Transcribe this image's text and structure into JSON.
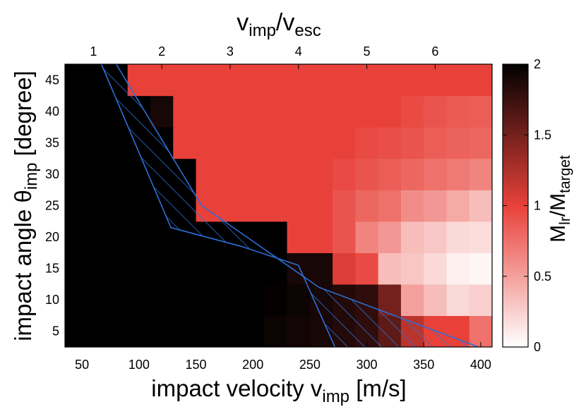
{
  "chart_data": {
    "type": "heatmap",
    "xlabel_main": "impact velocity v",
    "xlabel_sub": "imp",
    "xlabel_tail": " [m/s]",
    "ylabel_main": "impact angle θ",
    "ylabel_sub": "imp",
    "ylabel_tail": " [degree]",
    "top_label_v1": "v",
    "top_label_sub1": "imp",
    "top_label_sep": "/v",
    "top_label_sub2": "esc",
    "colorbar_label_m1": "M",
    "colorbar_label_sub1": "lr",
    "colorbar_label_sep": "/M",
    "colorbar_label_sub2": "target",
    "x_ticks": [
      "50",
      "100",
      "150",
      "200",
      "250",
      "300",
      "350",
      "400"
    ],
    "y_ticks": [
      "5",
      "10",
      "15",
      "20",
      "25",
      "30",
      "35",
      "40",
      "45"
    ],
    "top_ticks": [
      "1",
      "2",
      "3",
      "4",
      "5",
      "6"
    ],
    "top_tick_values": [
      1,
      2,
      3,
      4,
      5,
      6
    ],
    "colorbar_ticks": [
      "0",
      "0.5",
      "1",
      "1.5",
      "2"
    ],
    "colorbar_tick_values": [
      0,
      0.5,
      1,
      1.5,
      2
    ],
    "xlim": [
      35,
      410
    ],
    "ylim": [
      2.5,
      47.5
    ],
    "clim": [
      0,
      2
    ],
    "v_esc": 60,
    "x_centers": [
      40,
      60,
      80,
      100,
      120,
      140,
      160,
      180,
      200,
      220,
      240,
      260,
      280,
      300,
      320,
      340,
      360,
      380,
      400
    ],
    "y_centers": [
      5,
      10,
      15,
      20,
      25,
      30,
      35,
      40,
      45
    ],
    "colormap": [
      "#ffffff",
      "#e8413a",
      "#000000"
    ],
    "grid": [
      [
        2,
        2,
        2,
        2,
        2,
        2,
        2,
        2,
        2,
        1.95,
        1.92,
        1.9,
        1.85,
        1.8,
        1.6,
        1.2,
        1.0,
        1.0,
        0.75
      ],
      [
        2,
        2,
        2,
        2,
        2,
        2,
        2,
        2,
        2,
        1.98,
        1.95,
        1.9,
        1.85,
        1.8,
        1.5,
        0.5,
        0.35,
        0.2,
        0.25
      ],
      [
        2,
        2,
        2,
        2,
        2,
        2,
        2,
        2,
        2,
        2,
        1.9,
        1.9,
        1.05,
        0.95,
        0.35,
        0.3,
        0.2,
        0.08,
        0.05
      ],
      [
        2,
        2,
        2,
        2,
        2,
        2,
        2,
        2,
        2,
        2,
        1.0,
        1.0,
        0.9,
        0.65,
        0.55,
        0.35,
        0.3,
        0.2,
        0.18
      ],
      [
        2,
        2,
        2,
        2,
        2,
        2,
        1.0,
        1.0,
        1.0,
        1.0,
        1.0,
        1.0,
        0.9,
        0.8,
        0.75,
        0.6,
        0.55,
        0.45,
        0.35
      ],
      [
        2,
        2,
        2,
        2,
        2,
        2,
        1.0,
        1.0,
        1.0,
        1.0,
        1.0,
        1.0,
        0.95,
        0.9,
        0.85,
        0.8,
        0.75,
        0.7,
        0.65
      ],
      [
        2,
        2,
        2,
        2,
        2,
        1.0,
        1.0,
        1.0,
        1.0,
        1.0,
        1.0,
        1.0,
        1.0,
        0.95,
        0.93,
        0.9,
        0.85,
        0.82,
        0.8
      ],
      [
        2,
        2,
        2,
        2,
        1.9,
        1.0,
        1.0,
        1.0,
        1.0,
        1.0,
        1.0,
        1.0,
        1.0,
        1.0,
        1.0,
        0.95,
        0.9,
        0.87,
        0.85
      ],
      [
        2,
        2,
        2,
        1.0,
        1.0,
        1.0,
        1.0,
        1.0,
        1.0,
        1.0,
        1.0,
        1.0,
        1.0,
        1.0,
        1.0,
        1.0,
        1.0,
        1.0,
        1.0
      ]
    ],
    "hatch_boundary_outer": [
      [
        80,
        47.5
      ],
      [
        155,
        25
      ],
      [
        258,
        12
      ],
      [
        398,
        2.5
      ]
    ],
    "hatch_boundary_inner": [
      [
        67,
        47.5
      ],
      [
        128,
        21.5
      ],
      [
        190,
        18.5
      ],
      [
        240,
        15.5
      ],
      [
        272,
        2.5
      ]
    ],
    "hatch_color": "#2d6fd6"
  }
}
